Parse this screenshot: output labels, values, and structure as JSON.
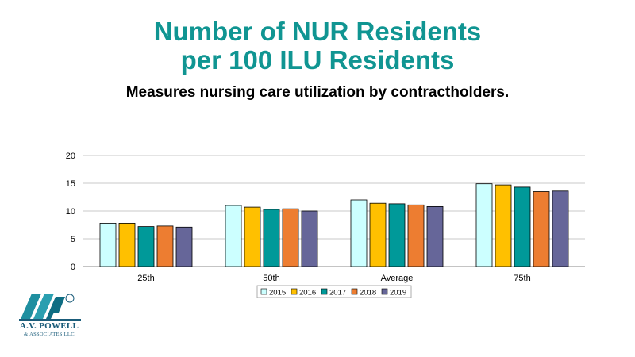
{
  "slide": {
    "title_line1": "Number of NUR Residents",
    "title_line2": "per 100 ILU Residents",
    "subtitle": "Measures nursing care utilization by contractholders."
  },
  "logo": {
    "name": "A.V. POWELL",
    "sub": "& ASSOCIATES LLC"
  },
  "chart_data": {
    "type": "bar",
    "categories": [
      "25th",
      "50th",
      "Average",
      "75th"
    ],
    "series": [
      {
        "name": "2015",
        "color": "#ccffff",
        "values": [
          7.8,
          11.0,
          12.0,
          14.9
        ]
      },
      {
        "name": "2016",
        "color": "#ffc000",
        "values": [
          7.8,
          10.7,
          11.4,
          14.7
        ]
      },
      {
        "name": "2017",
        "color": "#009999",
        "values": [
          7.2,
          10.3,
          11.3,
          14.3
        ]
      },
      {
        "name": "2018",
        "color": "#ed7d31",
        "values": [
          7.3,
          10.4,
          11.1,
          13.5
        ]
      },
      {
        "name": "2019",
        "color": "#666699",
        "values": [
          7.1,
          10.0,
          10.8,
          13.6
        ]
      }
    ],
    "ylim": [
      0,
      20
    ],
    "yticks": [
      0,
      5,
      10,
      15,
      20
    ],
    "grid": true,
    "legend": "bottom"
  }
}
